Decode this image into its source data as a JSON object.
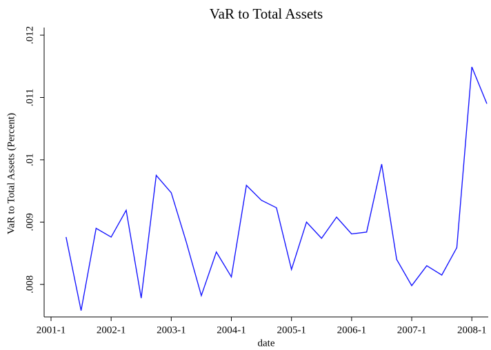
{
  "chart_data": {
    "type": "line",
    "title": "VaR to Total Assets",
    "x_label": "date",
    "y_label": "VaR to Total Assets (Percent)",
    "x": [
      "2001-2",
      "2001-3",
      "2001-4",
      "2002-1",
      "2002-2",
      "2002-3",
      "2002-4",
      "2003-1",
      "2003-2",
      "2003-3",
      "2003-4",
      "2004-1",
      "2004-2",
      "2004-3",
      "2004-4",
      "2005-1",
      "2005-2",
      "2005-3",
      "2005-4",
      "2006-1",
      "2006-2",
      "2006-3",
      "2006-4",
      "2007-1",
      "2007-2",
      "2007-3",
      "2007-4",
      "2008-1",
      "2008-2"
    ],
    "series": [
      {
        "name": "VaR to Total Assets",
        "color": "#1515ff",
        "values": [
          0.00876,
          0.00758,
          0.0089,
          0.00876,
          0.00919,
          0.00778,
          0.00975,
          0.00947,
          0.00868,
          0.00782,
          0.00852,
          0.00812,
          0.00959,
          0.00935,
          0.00923,
          0.00824,
          0.009,
          0.00874,
          0.00908,
          0.00881,
          0.00884,
          0.00993,
          0.0084,
          0.00798,
          0.0083,
          0.00815,
          0.00859,
          0.01149,
          0.0109
        ]
      }
    ],
    "xlim": [
      "2001-1",
      "2008-2"
    ],
    "xticks": [
      "2001-1",
      "2002-1",
      "2003-1",
      "2004-1",
      "2005-1",
      "2006-1",
      "2007-1",
      "2008-1"
    ],
    "ylim": [
      0.0075,
      0.0121
    ],
    "yticks": [
      {
        "value": 0.008,
        "label": ".008"
      },
      {
        "value": 0.009,
        "label": ".009"
      },
      {
        "value": 0.01,
        "label": ".01"
      },
      {
        "value": 0.011,
        "label": ".011"
      },
      {
        "value": 0.012,
        "label": ".012"
      }
    ],
    "grid": false
  }
}
